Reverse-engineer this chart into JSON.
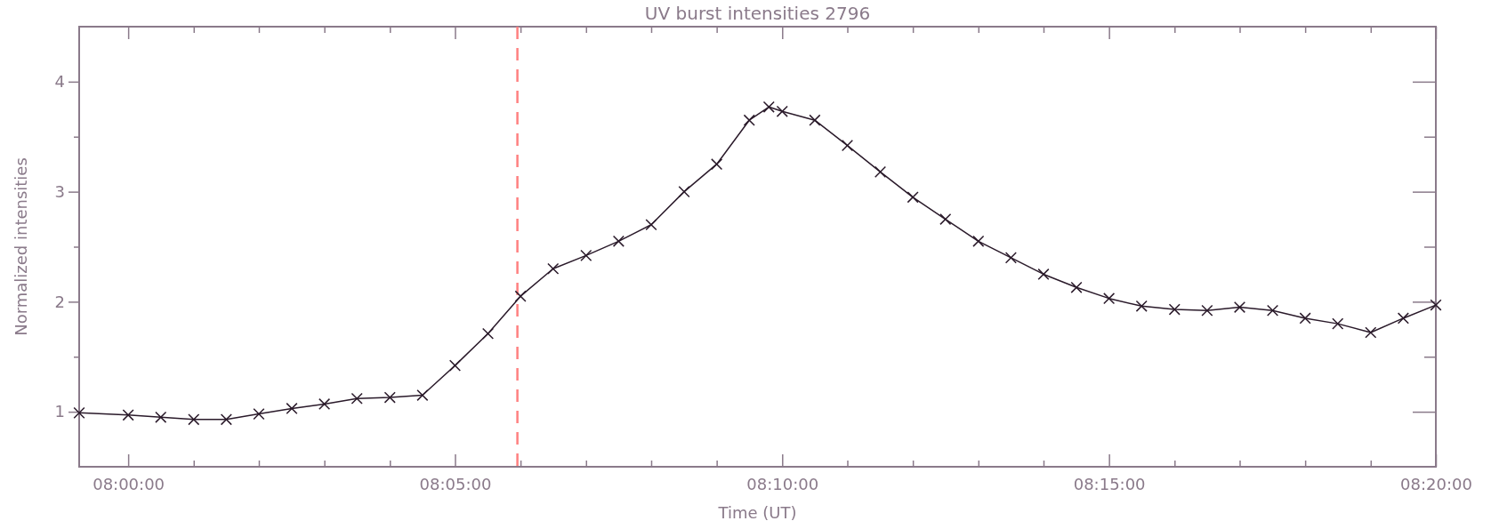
{
  "chart_data": {
    "type": "line",
    "title": "UV burst intensities 2796",
    "xlabel": "Time (UT)",
    "ylabel": "Normalized intensities",
    "x": [
      7.9875,
      8.0,
      8.0083,
      8.0167,
      8.025,
      8.0333,
      8.0417,
      8.05,
      8.0583,
      8.0667,
      8.075,
      8.0833,
      8.0917,
      8.1,
      8.1083,
      8.1167,
      8.125,
      8.1333,
      8.1417,
      8.15,
      8.1583,
      8.1633,
      8.1667,
      8.175,
      8.1833,
      8.1917,
      8.2,
      8.2083,
      8.2167,
      8.225,
      8.2333,
      8.2417,
      8.25,
      8.2583,
      8.2667,
      8.275,
      8.2833,
      8.2917,
      8.3,
      8.3083,
      8.3167,
      8.325,
      8.3333
    ],
    "series": [
      {
        "color": "#2a1a2a",
        "values": [
          0.99,
          0.97,
          0.95,
          0.93,
          0.93,
          0.98,
          1.03,
          1.07,
          1.12,
          1.13,
          1.15,
          1.42,
          1.71,
          2.05,
          2.3,
          2.42,
          2.55,
          2.7,
          3.0,
          3.25,
          3.65,
          3.77,
          3.73,
          3.65,
          3.42,
          3.18,
          2.95,
          2.75,
          2.55,
          2.4,
          2.25,
          2.13,
          2.03,
          1.96,
          1.93,
          1.92,
          1.95,
          1.92,
          1.85,
          1.8,
          1.72,
          1.85,
          1.97
        ]
      }
    ],
    "marker": "cross",
    "line_style": "solid",
    "grid": false,
    "xlim": [
      7.9875,
      8.3333
    ],
    "xticks": [
      {
        "value": 8.0,
        "label": "08:00:00"
      },
      {
        "value": 8.0167,
        "label": null
      },
      {
        "value": 8.0333,
        "label": null
      },
      {
        "value": 8.05,
        "label": null
      },
      {
        "value": 8.0667,
        "label": null
      },
      {
        "value": 8.0833,
        "label": "08:05:00"
      },
      {
        "value": 8.1,
        "label": null
      },
      {
        "value": 8.1167,
        "label": null
      },
      {
        "value": 8.1333,
        "label": null
      },
      {
        "value": 8.15,
        "label": null
      },
      {
        "value": 8.1667,
        "label": "08:10:00"
      },
      {
        "value": 8.1833,
        "label": null
      },
      {
        "value": 8.2,
        "label": null
      },
      {
        "value": 8.2167,
        "label": null
      },
      {
        "value": 8.2333,
        "label": null
      },
      {
        "value": 8.25,
        "label": "08:15:00"
      },
      {
        "value": 8.2667,
        "label": null
      },
      {
        "value": 8.2833,
        "label": null
      },
      {
        "value": 8.3,
        "label": null
      },
      {
        "value": 8.3167,
        "label": null
      },
      {
        "value": 8.3333,
        "label": "08:20:00"
      }
    ],
    "ylim": [
      0.5,
      4.5
    ],
    "yticks": [
      {
        "value": 1,
        "label": "1"
      },
      {
        "value": 1.5,
        "label": null
      },
      {
        "value": 2,
        "label": "2"
      },
      {
        "value": 2.5,
        "label": null
      },
      {
        "value": 3,
        "label": "3"
      },
      {
        "value": 3.5,
        "label": null
      },
      {
        "value": 4,
        "label": "4"
      }
    ],
    "ref_lines": [
      {
        "axis": "x",
        "value": 8.0992,
        "color": "#ff8080",
        "line_style": "dashed"
      }
    ]
  }
}
